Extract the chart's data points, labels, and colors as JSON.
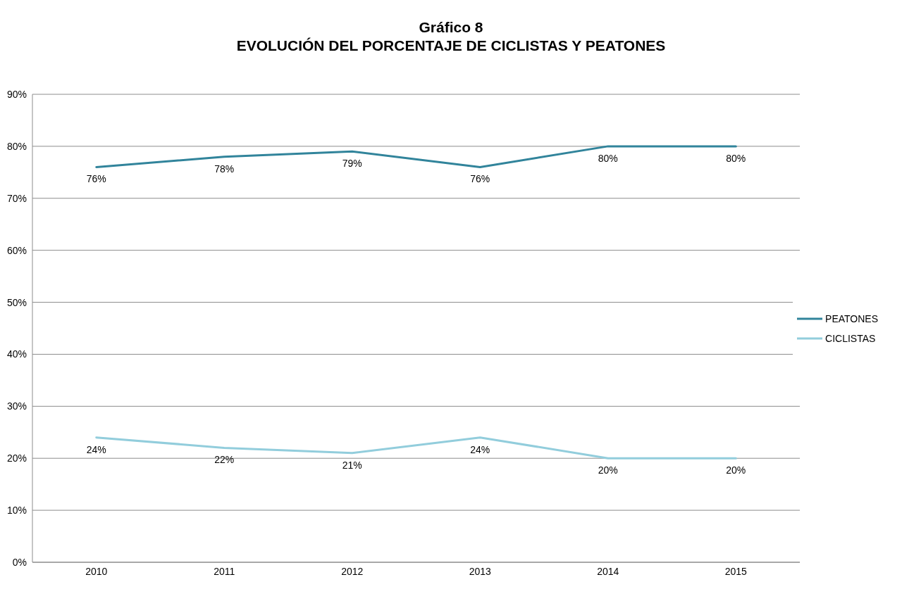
{
  "chart_data": {
    "type": "line",
    "title": "Gráfico 8",
    "subtitle": "EVOLUCIÓN DEL PORCENTAJE DE CICLISTAS Y PEATONES",
    "categories": [
      "2010",
      "2011",
      "2012",
      "2013",
      "2014",
      "2015"
    ],
    "series": [
      {
        "name": "PEATONES",
        "color": "#31849b",
        "values": [
          76,
          78,
          79,
          76,
          80,
          80
        ],
        "value_labels": [
          "76%",
          "78%",
          "79%",
          "76%",
          "80%",
          "80%"
        ]
      },
      {
        "name": "CICLISTAS",
        "color": "#92cddc",
        "values": [
          24,
          22,
          21,
          24,
          20,
          20
        ],
        "value_labels": [
          "24%",
          "22%",
          "21%",
          "24%",
          "20%",
          "20%"
        ]
      }
    ],
    "ylim": [
      0,
      90
    ],
    "yticks": [
      {
        "value": 0,
        "label": "0%"
      },
      {
        "value": 10,
        "label": "10%"
      },
      {
        "value": 20,
        "label": "20%"
      },
      {
        "value": 30,
        "label": "30%"
      },
      {
        "value": 40,
        "label": "40%"
      },
      {
        "value": 50,
        "label": "50%"
      },
      {
        "value": 60,
        "label": "60%"
      },
      {
        "value": 70,
        "label": "70%"
      },
      {
        "value": 80,
        "label": "80%"
      },
      {
        "value": 90,
        "label": "90%"
      }
    ],
    "grid": "y",
    "legend": "right",
    "marker": "none",
    "line_style": "solid"
  }
}
